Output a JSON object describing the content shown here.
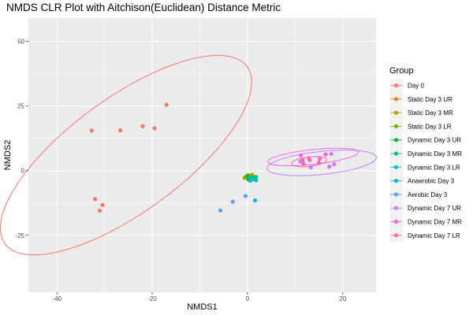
{
  "chart_data": {
    "type": "scatter",
    "title": "NMDS CLR Plot with Aitchison(Euclidean) Distance Metric",
    "xlabel": "NMDS1",
    "ylabel": "NMDS2",
    "xlim": [
      -46,
      27
    ],
    "ylim": [
      -47,
      59
    ],
    "xticks": [
      -40,
      -20,
      0,
      20
    ],
    "yticks": [
      -25,
      0,
      25,
      50
    ],
    "grid": true,
    "legend": {
      "title": "Group",
      "position": "right"
    },
    "series": [
      {
        "name": "Day 0",
        "color": "#F8766D",
        "points": [
          [
            -32.7,
            15.5
          ],
          [
            -26.7,
            15.6
          ],
          [
            -22.0,
            17.2
          ],
          [
            -19.5,
            16.4
          ],
          [
            -17.0,
            25.5
          ],
          [
            -32.0,
            -11.0
          ],
          [
            -30.4,
            -13.3
          ],
          [
            -31.0,
            -15.5
          ]
        ]
      },
      {
        "name": "Static Day 3 UR",
        "color": "#DE8C00",
        "points": [
          [
            0.4,
            -2.5
          ],
          [
            1.0,
            -1.6
          ],
          [
            0.6,
            -3.6
          ]
        ]
      },
      {
        "name": "Static Day 3 MR",
        "color": "#B79F00",
        "points": [
          [
            -0.6,
            -2.8
          ],
          [
            0.2,
            -2.2
          ],
          [
            1.0,
            -3.2
          ]
        ]
      },
      {
        "name": "Static Day 3 LR",
        "color": "#7CAE00",
        "points": [
          [
            0.8,
            -3.0
          ],
          [
            0.2,
            -1.8
          ],
          [
            1.4,
            -2.4
          ]
        ]
      },
      {
        "name": "Dynamic Day 3 UR",
        "color": "#00BA38",
        "points": [
          [
            0.2,
            -3.4
          ],
          [
            1.2,
            -2.9
          ],
          [
            -0.1,
            -2.1
          ]
        ]
      },
      {
        "name": "Dynamic Day 3 MR",
        "color": "#00C08B",
        "points": [
          [
            1.5,
            -3.4
          ],
          [
            1.8,
            -2.5
          ],
          [
            0.7,
            -2.7
          ]
        ]
      },
      {
        "name": "Dynamic Day 3 LR",
        "color": "#00BFC4",
        "points": [
          [
            1.8,
            -3.7
          ],
          [
            1.0,
            -3.3
          ],
          [
            0.6,
            -3.9
          ]
        ]
      },
      {
        "name": "Anaerobic Day 3",
        "color": "#00B4F0",
        "points": [
          [
            1.6,
            -11.5
          ]
        ]
      },
      {
        "name": "Aerobic Day 3",
        "color": "#619CFF",
        "points": [
          [
            -5.7,
            -15.4
          ],
          [
            -3.1,
            -12.0
          ],
          [
            -0.4,
            -9.8
          ]
        ]
      },
      {
        "name": "Dynamic Day 7 UR",
        "color": "#C77CFF",
        "points": [
          [
            17.2,
            1.5
          ],
          [
            18.2,
            2.5
          ],
          [
            17.6,
            6.5
          ],
          [
            13.3,
            1.3
          ],
          [
            11.1,
            3.5
          ]
        ]
      },
      {
        "name": "Dynamic Day 7 MR",
        "color": "#F564E3",
        "points": [
          [
            11.2,
            5.9
          ],
          [
            12.9,
            4.7
          ],
          [
            15.2,
            4.6
          ],
          [
            16.4,
            6.3
          ]
        ]
      },
      {
        "name": "Dynamic Day 7 LR",
        "color": "#FF64B0",
        "points": [
          [
            11.8,
            2.6
          ],
          [
            13.1,
            4.1
          ],
          [
            15.0,
            3.1
          ],
          [
            11.6,
            4.1
          ]
        ]
      }
    ],
    "ellipses": [
      {
        "series": "Day 0",
        "color": "#F8766D",
        "cx": -25.5,
        "cy": 6,
        "rx": 44,
        "ry": 15.8,
        "angle_deg": 59
      },
      {
        "series": "Dynamic Day 7 UR",
        "color": "#C77CFF",
        "cx": 15.6,
        "cy": 3.0,
        "rx": 11.7,
        "ry": 4.4,
        "angle_deg": 12
      },
      {
        "series": "Dynamic Day 7 MR",
        "color": "#F564E3",
        "cx": 13.8,
        "cy": 5.3,
        "rx": 9.7,
        "ry": 2.8,
        "angle_deg": 12
      },
      {
        "series": "Dynamic Day 7 LR",
        "color": "#FF64B0",
        "cx": 13.0,
        "cy": 3.5,
        "rx": 3.8,
        "ry": 1.8,
        "angle_deg": 15
      }
    ]
  }
}
